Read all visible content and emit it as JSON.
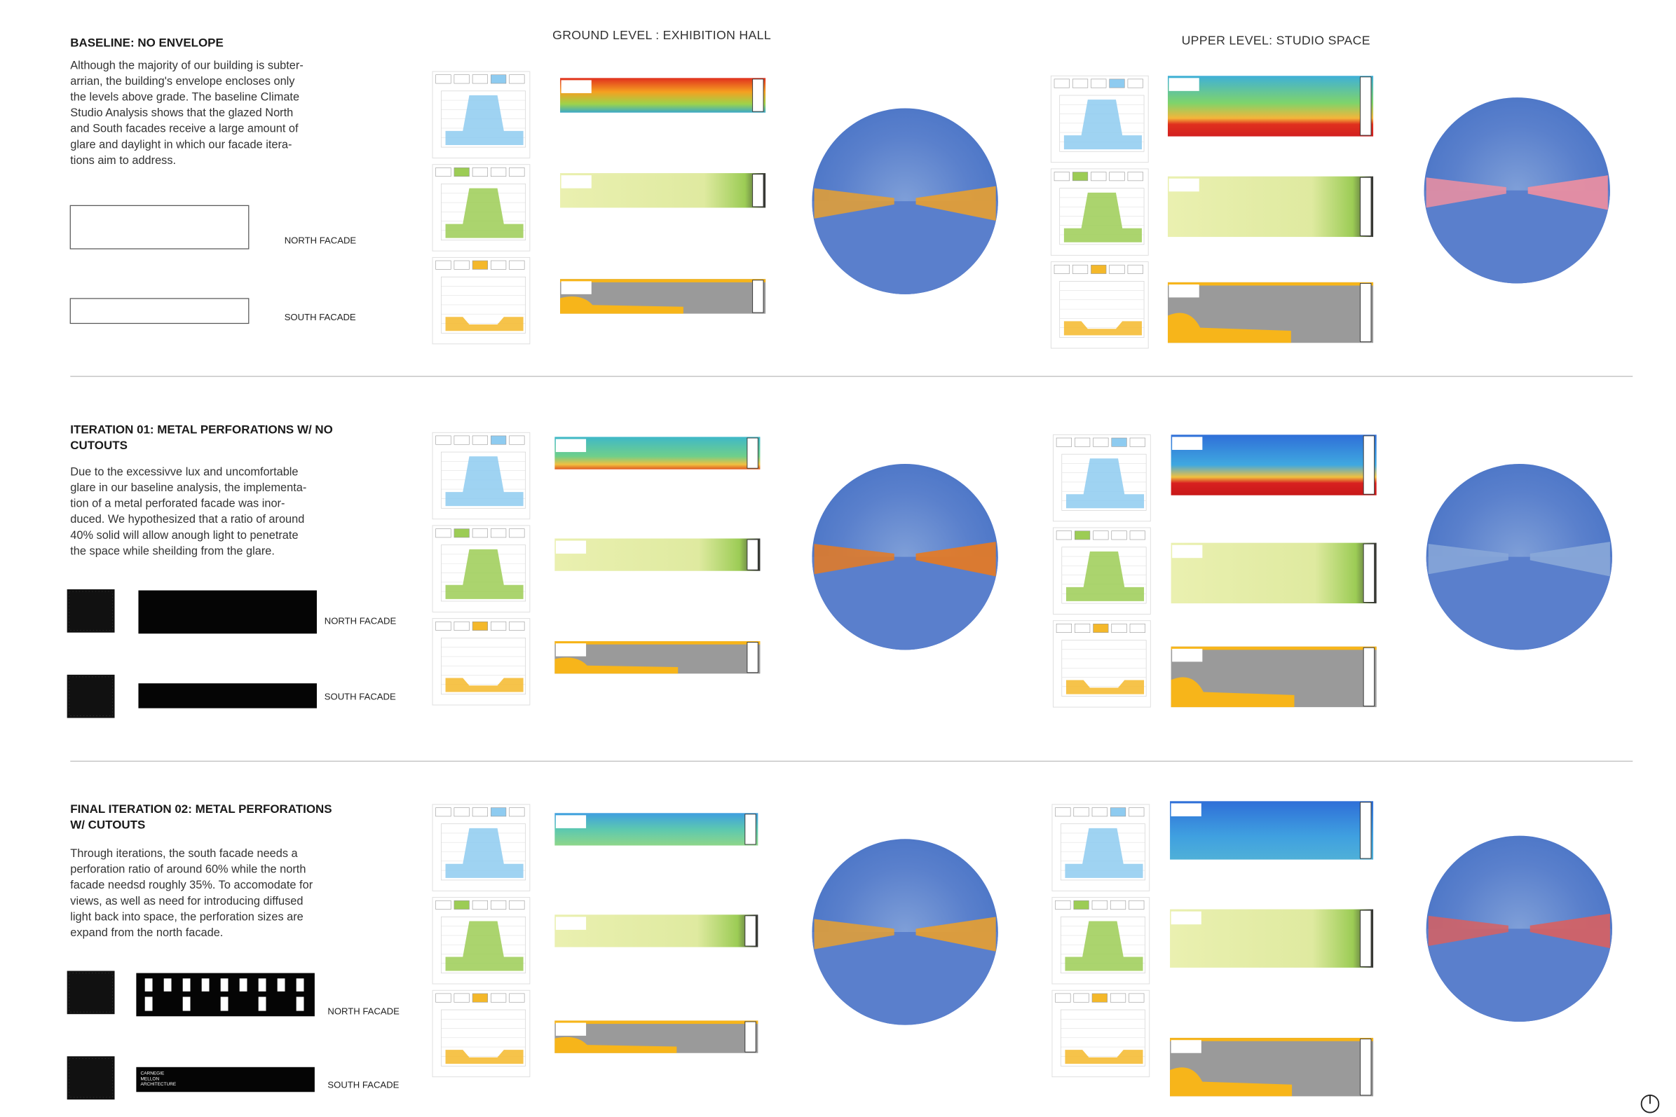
{
  "headers": {
    "ground": "GROUND LEVEL : EXHIBITION HALL",
    "upper": "UPPER LEVEL: STUDIO SPACE"
  },
  "sections": [
    {
      "title": [
        "BASELINE: NO ENVELOPE"
      ],
      "body": [
        "Although the majority of our building is subter-",
        "arrian, the building's envelope encloses only",
        "the levels above grade. The baseline Climate",
        "Studio Analysis shows that the glazed North",
        "and South facades receive a large amount of",
        "glare and daylight in which our facade itera-",
        "tions aim to address."
      ],
      "north_label": "NORTH FACADE",
      "south_label": "SOUTH FACADE"
    },
    {
      "title": [
        "ITERATION 01: METAL PERFORATIONS W/ NO",
        "CUTOUTS"
      ],
      "body": [
        "Due to the excessivve lux and uncomfortable",
        "glare in our baseline analysis, the implementa-",
        "tion of a metal perforated facade was inor-",
        "duced. We hypothesized that a ratio of around",
        "40% solid will allow anough light to penetrate",
        "the space while sheilding from the glare."
      ],
      "north_label": "NORTH FACADE",
      "south_label": "SOUTH FACADE"
    },
    {
      "title": [
        "FINAL ITERATION 02: METAL PERFORATIONS",
        "W/ CUTOUTS"
      ],
      "body": [
        "Through iterations, the south facade needs a",
        "perforation ratio of around 60% while the north",
        "facade needsd roughly 35%. To accomodate for",
        "views, as well as need for introducing diffused",
        "light back into space, the perforation sizes are",
        "expand from the north facade."
      ],
      "north_label": "NORTH FACADE",
      "south_label": "SOUTH FACADE",
      "logo": [
        "CARNEGIE",
        "MELLON",
        "ARCHITECTURE"
      ]
    }
  ]
}
